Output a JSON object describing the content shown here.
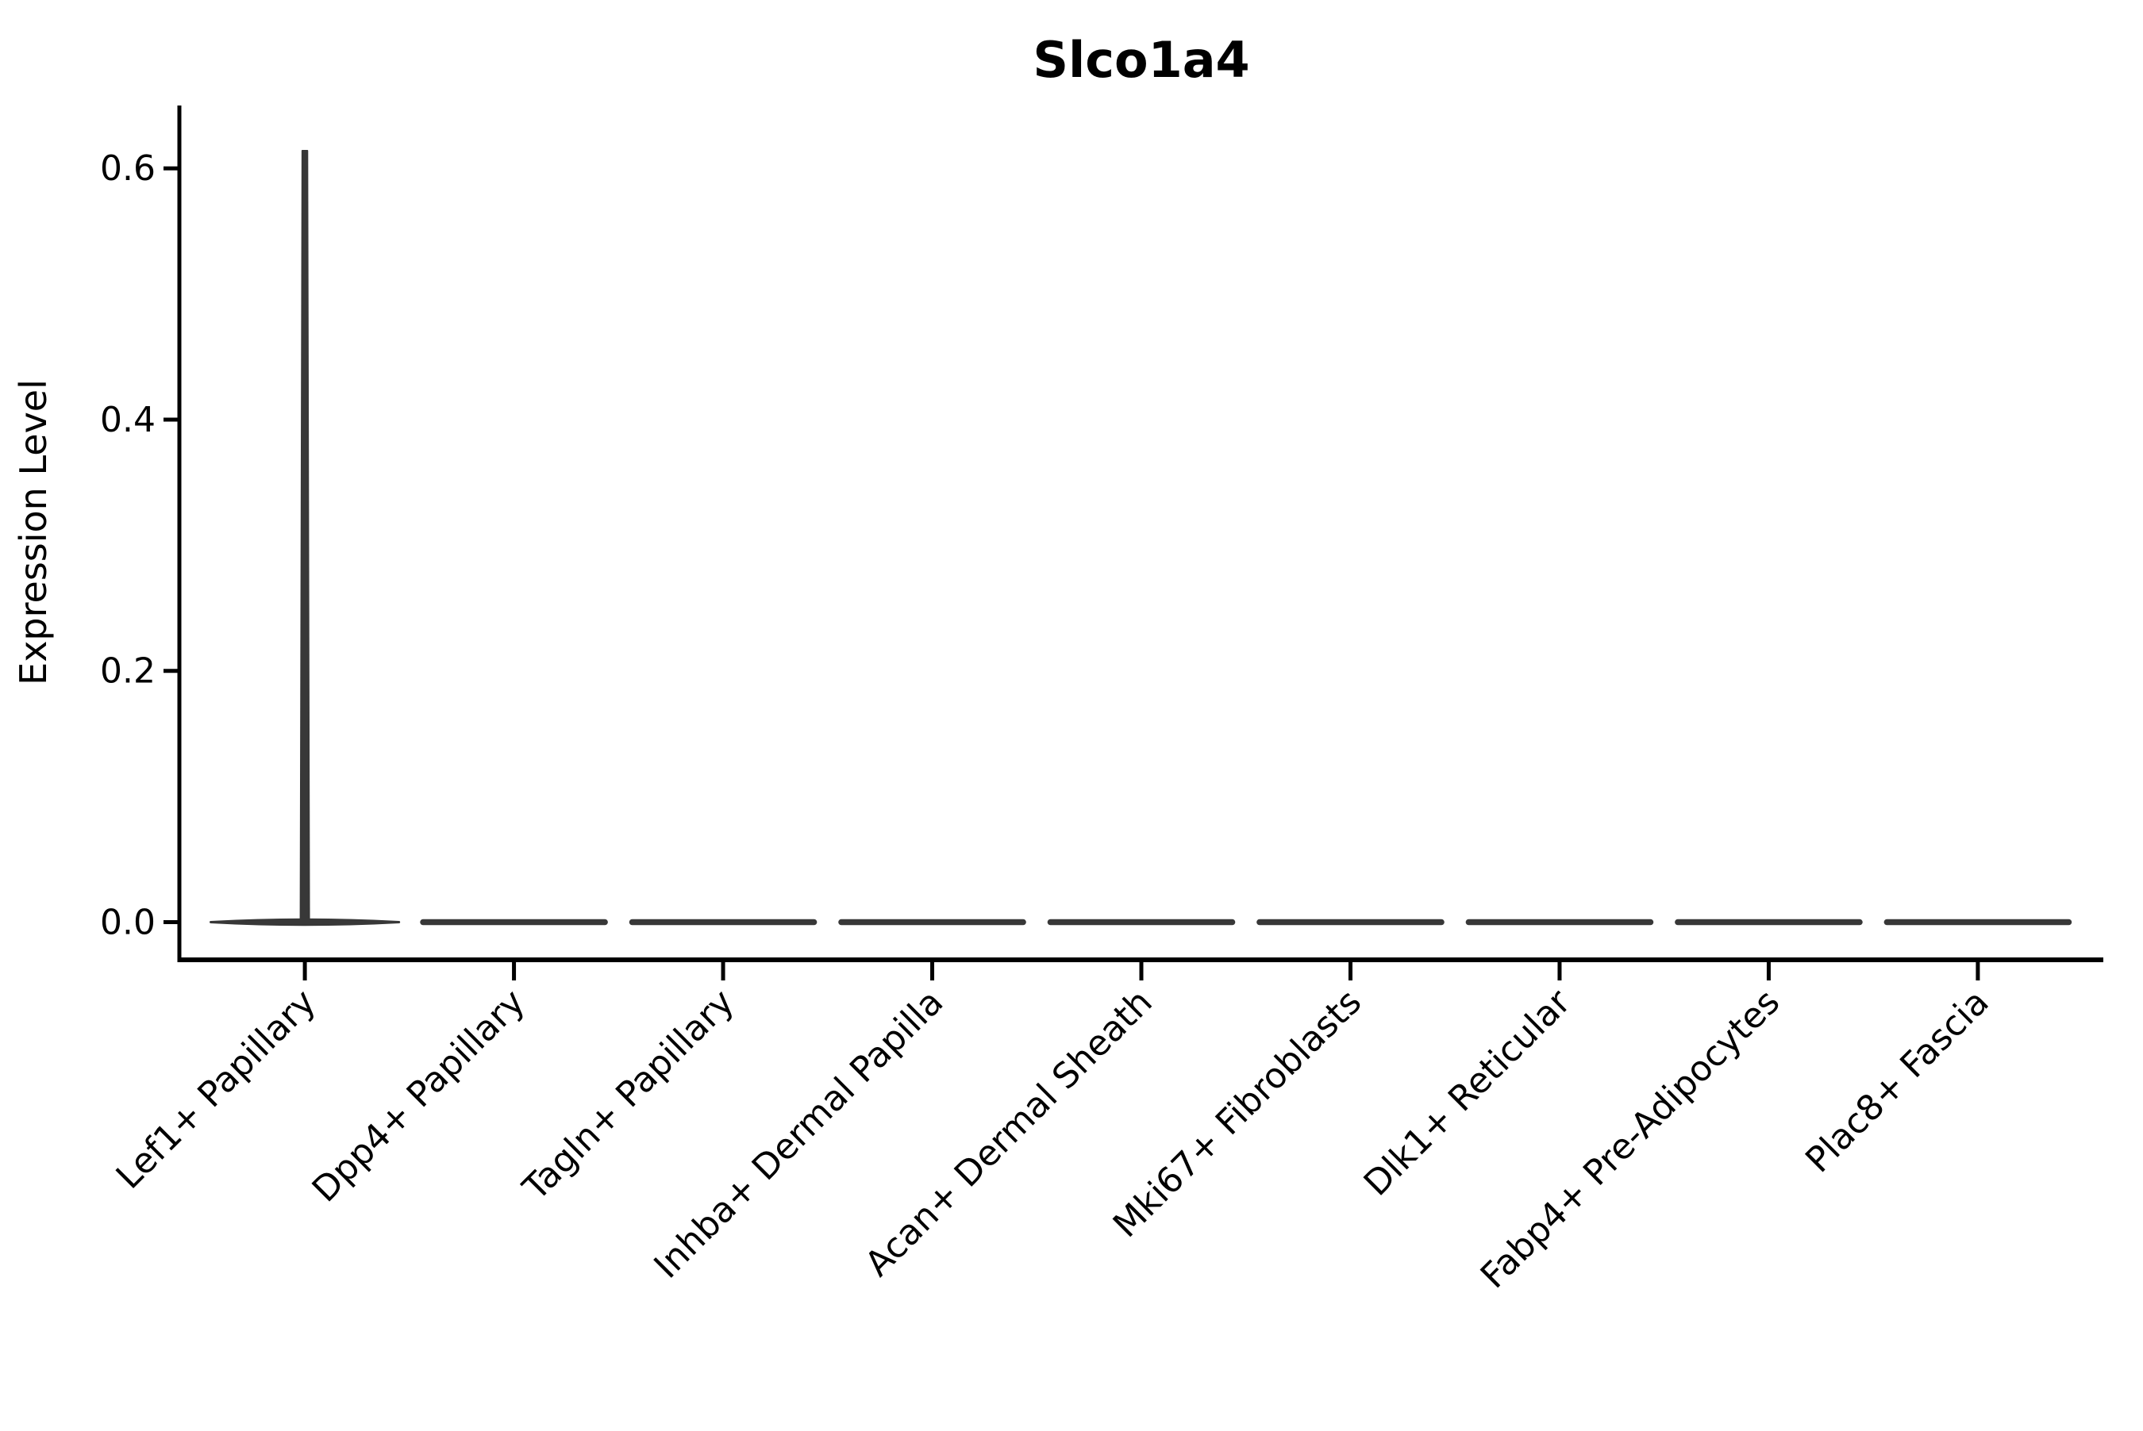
{
  "chart_data": {
    "type": "violin",
    "title": "Slco1a4",
    "xlabel": "",
    "ylabel": "Expression Level",
    "categories": [
      "Lef1+ Papillary",
      "Dpp4+ Papillary",
      "Tagln+ Papillary",
      "Inhba+ Dermal Papilla",
      "Acan+ Dermal Sheath",
      "Mki67+ Fibroblasts",
      "Dlk1+ Reticular",
      "Fabp4+ Pre-Adipocytes",
      "Plac8+ Fascia"
    ],
    "violins": [
      {
        "category": "Lef1+ Papillary",
        "density_peak_at": 0.0,
        "max_expression": 0.614,
        "has_spike": true
      },
      {
        "category": "Dpp4+ Papillary",
        "density_peak_at": 0.0,
        "max_expression": 0.0,
        "has_spike": false
      },
      {
        "category": "Tagln+ Papillary",
        "density_peak_at": 0.0,
        "max_expression": 0.0,
        "has_spike": false
      },
      {
        "category": "Inhba+ Dermal Papilla",
        "density_peak_at": 0.0,
        "max_expression": 0.0,
        "has_spike": false
      },
      {
        "category": "Acan+ Dermal Sheath",
        "density_peak_at": 0.0,
        "max_expression": 0.0,
        "has_spike": false
      },
      {
        "category": "Mki67+ Fibroblasts",
        "density_peak_at": 0.0,
        "max_expression": 0.0,
        "has_spike": false
      },
      {
        "category": "Dlk1+ Reticular",
        "density_peak_at": 0.0,
        "max_expression": 0.0,
        "has_spike": false
      },
      {
        "category": "Fabp4+ Pre-Adipocytes",
        "density_peak_at": 0.0,
        "max_expression": 0.0,
        "has_spike": false
      },
      {
        "category": "Plac8+ Fascia",
        "density_peak_at": 0.0,
        "max_expression": 0.0,
        "has_spike": false
      }
    ],
    "yticks": [
      0.0,
      0.2,
      0.4,
      0.6
    ],
    "ytick_labels": [
      "0.0",
      "0.2",
      "0.4",
      "0.6"
    ],
    "ylim": [
      -0.03,
      0.65
    ],
    "grid": false,
    "legend": null,
    "x_tick_label_rotation_deg": 45,
    "colors": {
      "violin": "#383838",
      "axis": "#000000",
      "text": "#000000",
      "background": "#ffffff"
    }
  }
}
